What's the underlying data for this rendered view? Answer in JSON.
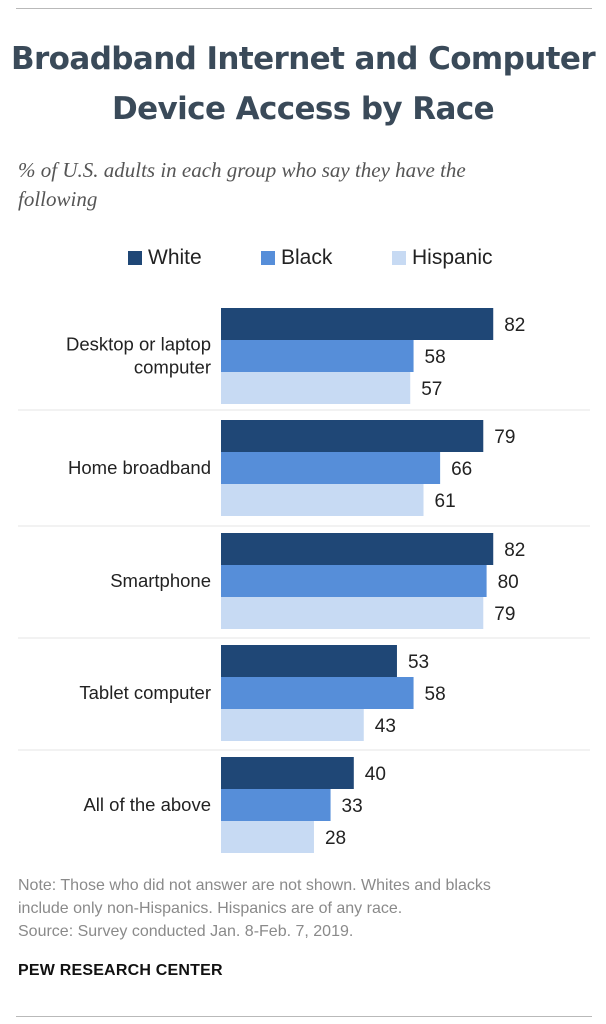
{
  "header": {
    "title_lines": [
      "Broadband Internet and Computer",
      "Device Access by Race"
    ],
    "subtitle_lines": [
      "% of U.S. adults in each group who say they have the",
      "following"
    ]
  },
  "chart_data": {
    "type": "bar",
    "orientation": "horizontal",
    "title": "Broadband Internet and Computer Device Access by Race",
    "subtitle": "% of U.S. adults in each group who say they have the following",
    "xlabel": "",
    "ylabel": "",
    "xlim": [
      0,
      100
    ],
    "grid": false,
    "legend_position": "top",
    "categories": [
      {
        "label_lines": [
          "Desktop or laptop",
          "computer"
        ]
      },
      {
        "label_lines": [
          "Home broadband"
        ]
      },
      {
        "label_lines": [
          "Smartphone"
        ]
      },
      {
        "label_lines": [
          "Tablet computer"
        ]
      },
      {
        "label_lines": [
          "All of the above"
        ]
      }
    ],
    "series": [
      {
        "name": "White",
        "color": "#1f4776",
        "values": [
          82,
          79,
          82,
          53,
          40
        ]
      },
      {
        "name": "Black",
        "color": "#568ed9",
        "values": [
          58,
          66,
          80,
          58,
          33
        ]
      },
      {
        "name": "Hispanic",
        "color": "#c7daf3",
        "values": [
          57,
          61,
          79,
          43,
          28
        ]
      }
    ]
  },
  "footer": {
    "note_lines": [
      "Note: Those who did not answer are not shown. Whites and blacks",
      "include only non-Hispanics. Hispanics are of any race.",
      "Source: Survey conducted Jan. 8-Feb. 7, 2019."
    ],
    "brand": "PEW RESEARCH CENTER"
  }
}
